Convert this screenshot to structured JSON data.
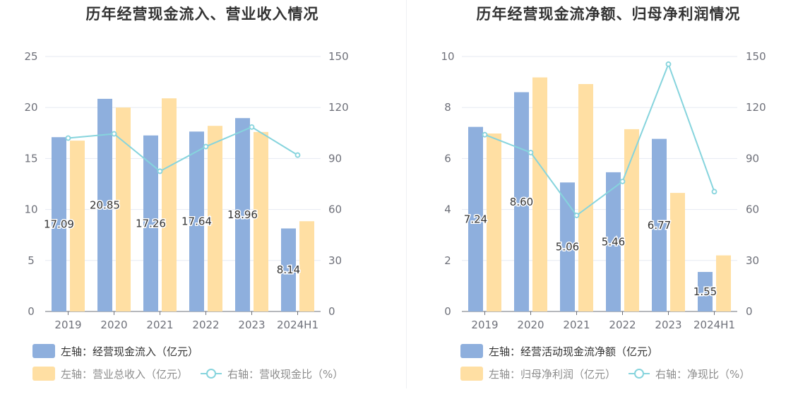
{
  "colors": {
    "bar_primary": "#8eafdd",
    "bar_secondary": "#ffdfa3",
    "line": "#86d4dd",
    "axis": "#6e7079",
    "grid": "#e6eaf2",
    "legend_dim": "#8c8c8c",
    "legend_strong": "#333333"
  },
  "chart_data": [
    {
      "type": "bar",
      "title": "历年经营现金流入、营业收入情况",
      "categories": [
        "2019",
        "2020",
        "2021",
        "2022",
        "2023",
        "2024H1"
      ],
      "left_axis": {
        "ylim": [
          0,
          25
        ],
        "ticks": [
          "0",
          "5",
          "10",
          "15",
          "20",
          "25"
        ]
      },
      "right_axis": {
        "ylim": [
          0,
          150
        ],
        "ticks": [
          "0",
          "30",
          "60",
          "90",
          "120",
          "150"
        ]
      },
      "grid": true,
      "legend_position": "bottom-left",
      "series": [
        {
          "name": "左轴：经营现金流入（亿元）",
          "axis": "left",
          "kind": "bar",
          "values": [
            17.09,
            20.85,
            17.26,
            17.64,
            18.96,
            8.14
          ],
          "labels": [
            "17.09",
            "20.85",
            "17.26",
            "17.64",
            "18.96",
            "8.14"
          ]
        },
        {
          "name": "左轴：营业总收入（亿元）",
          "axis": "left",
          "kind": "bar",
          "values": [
            16.75,
            20.0,
            20.9,
            18.2,
            17.6,
            8.85
          ]
        },
        {
          "name": "右轴：营收现金比（%）",
          "axis": "right",
          "kind": "line",
          "values": [
            102,
            104.5,
            82.5,
            97,
            108.5,
            92
          ]
        }
      ]
    },
    {
      "type": "bar",
      "title": "历年经营现金流净额、归母净利润情况",
      "categories": [
        "2019",
        "2020",
        "2021",
        "2022",
        "2023",
        "2024H1"
      ],
      "left_axis": {
        "ylim": [
          0,
          10
        ],
        "ticks": [
          "0",
          "2",
          "4",
          "6",
          "8",
          "10"
        ]
      },
      "right_axis": {
        "ylim": [
          0,
          150
        ],
        "ticks": [
          "0",
          "30",
          "60",
          "90",
          "120",
          "150"
        ]
      },
      "grid": true,
      "legend_position": "bottom-left",
      "series": [
        {
          "name": "左轴：经营活动现金流净额（亿元）",
          "axis": "left",
          "kind": "bar",
          "values": [
            7.24,
            8.6,
            5.06,
            5.46,
            6.77,
            1.55
          ],
          "labels": [
            "7.24",
            "8.60",
            "5.06",
            "5.46",
            "6.77",
            "1.55"
          ]
        },
        {
          "name": "左轴：归母净利润（亿元）",
          "axis": "left",
          "kind": "bar",
          "values": [
            6.98,
            9.18,
            8.92,
            7.15,
            4.65,
            2.2
          ]
        },
        {
          "name": "右轴：净现比（%）",
          "axis": "right",
          "kind": "line",
          "values": [
            104,
            93.5,
            56.5,
            76.5,
            145.5,
            70.5
          ]
        }
      ]
    }
  ]
}
